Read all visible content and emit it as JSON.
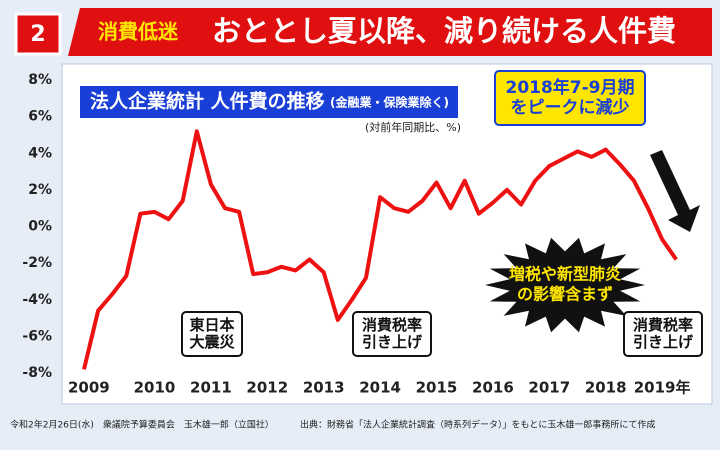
{
  "header": {
    "number": "2",
    "tag": "消費低迷",
    "title": "おととし夏以降、減り続ける人件費"
  },
  "chart_data": {
    "type": "line",
    "title": "法人企業統計 人件費の推移",
    "subtitle": "(金融業・保険業除く)",
    "unit_note": "(対前年同期比、%)",
    "categories": [
      "2009",
      null,
      null,
      null,
      null,
      "2010",
      null,
      null,
      null,
      "2011",
      null,
      null,
      null,
      "2012",
      null,
      null,
      null,
      "2013",
      null,
      null,
      null,
      "2014",
      null,
      null,
      null,
      "2015",
      null,
      null,
      null,
      "2016",
      null,
      null,
      null,
      "2017",
      null,
      null,
      null,
      "2018",
      null,
      null,
      null,
      "2019年",
      null
    ],
    "series": [
      {
        "name": "人件費",
        "color": "#ee1111",
        "values": [
          -7.8,
          -4.6,
          -3.7,
          -2.7,
          0.7,
          0.8,
          0.4,
          1.4,
          5.2,
          2.3,
          1.0,
          0.8,
          -2.6,
          -2.5,
          -2.2,
          -2.4,
          -1.8,
          -2.5,
          -5.1,
          -4.0,
          -2.8,
          1.6,
          1.0,
          0.8,
          1.4,
          2.4,
          1.0,
          2.5,
          0.7,
          1.3,
          2.0,
          1.2,
          2.5,
          3.3,
          3.7,
          4.1,
          3.8,
          4.2,
          3.4,
          2.5,
          1.0,
          -0.7,
          -1.8
        ]
      }
    ],
    "ylim": [
      -8,
      8
    ],
    "yticks": [
      {
        "value": -8,
        "label": "-8%"
      },
      {
        "value": -6,
        "label": "-6%"
      },
      {
        "value": -4,
        "label": "-4%"
      },
      {
        "value": -2,
        "label": "-2%"
      },
      {
        "value": 0,
        "label": "0%"
      },
      {
        "value": 2,
        "label": "2%"
      },
      {
        "value": 4,
        "label": "4%"
      },
      {
        "value": 6,
        "label": "6%"
      },
      {
        "value": 8,
        "label": "8%"
      }
    ],
    "grid": false,
    "annotations": [
      {
        "lines": [
          "2018年7-9月期",
          "をピークに減少"
        ]
      },
      {
        "lines": [
          "増税や新型肺炎",
          "の影響含まず"
        ]
      },
      {
        "lines": [
          "東日本",
          "大震災"
        ]
      },
      {
        "lines": [
          "消費税率",
          "引き上げ"
        ]
      },
      {
        "lines": [
          "消費税率",
          "引き上げ"
        ]
      }
    ]
  },
  "footer": {
    "left": "令和2年2月26日(水)　衆議院予算委員会　玉木雄一郎（立国社）",
    "right": "出典：財務省「法人企業統計調査（時系列データ）」をもとに玉木雄一郎事務所にて作成"
  }
}
